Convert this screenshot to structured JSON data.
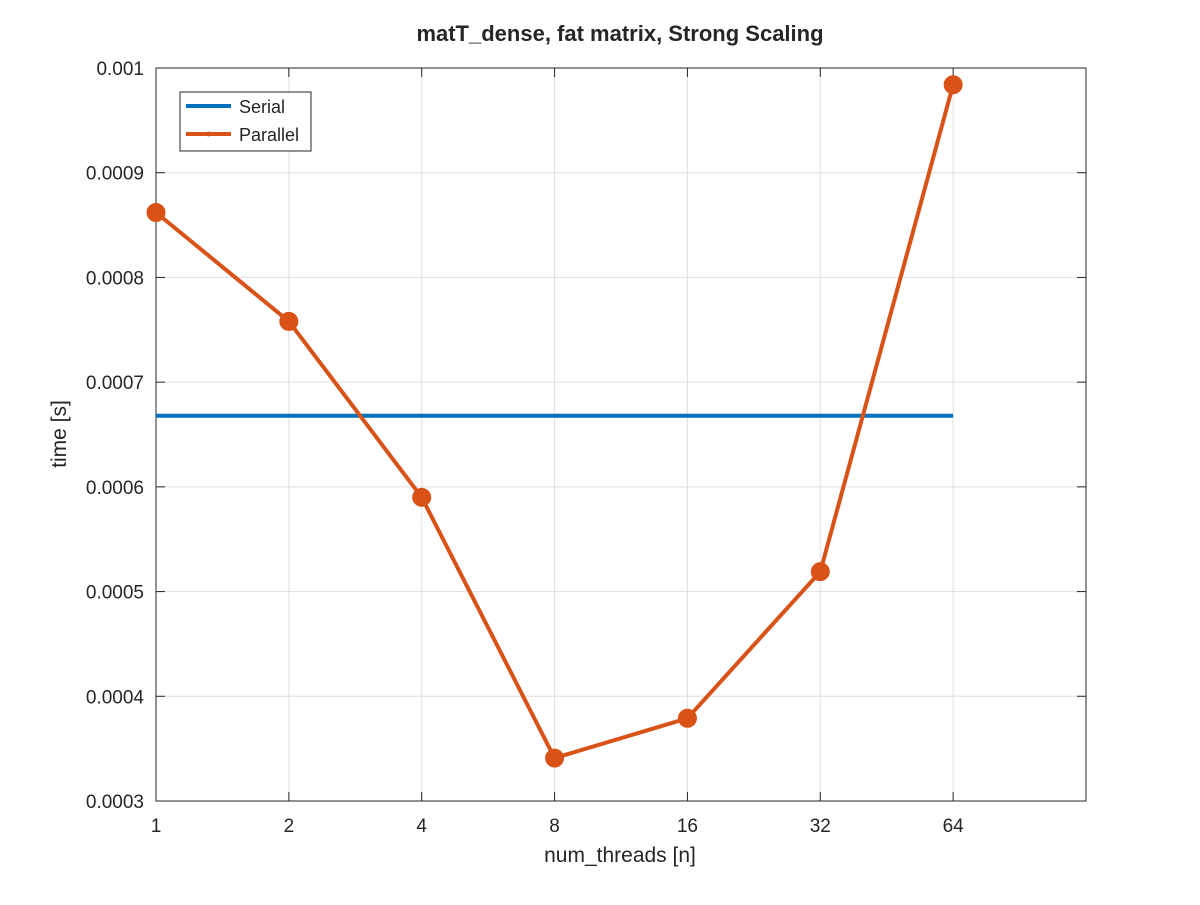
{
  "chart_data": {
    "type": "line",
    "title": "matT_dense, fat matrix, Strong Scaling",
    "xlabel": "num_threads [n]",
    "ylabel": "time [s]",
    "x_scale": "log2",
    "x": [
      1,
      2,
      4,
      8,
      16,
      32,
      64
    ],
    "xlim": [
      1,
      128
    ],
    "xticks": [
      1,
      2,
      4,
      8,
      16,
      32,
      64
    ],
    "xtick_labels": [
      "1",
      "2",
      "4",
      "8",
      "16",
      "32",
      "64"
    ],
    "ylim": [
      0.0003,
      0.001
    ],
    "yticks": [
      0.0003,
      0.0004,
      0.0005,
      0.0006,
      0.0007,
      0.0008,
      0.0009,
      0.001
    ],
    "ytick_labels": [
      "0.0003",
      "0.0004",
      "0.0005",
      "0.0006",
      "0.0007",
      "0.0008",
      "0.0009",
      "0.001"
    ],
    "grid": true,
    "legend_position": "top-left",
    "series": [
      {
        "name": "Serial",
        "color": "#0072BD",
        "marker": "none",
        "values": [
          0.000668,
          0.000668,
          0.000668,
          0.000668,
          0.000668,
          0.000668,
          0.000668
        ]
      },
      {
        "name": "Parallel",
        "color": "#D95319",
        "marker": "circle",
        "values": [
          0.000862,
          0.000758,
          0.00059,
          0.000341,
          0.000379,
          0.000519,
          0.000984
        ]
      }
    ]
  }
}
